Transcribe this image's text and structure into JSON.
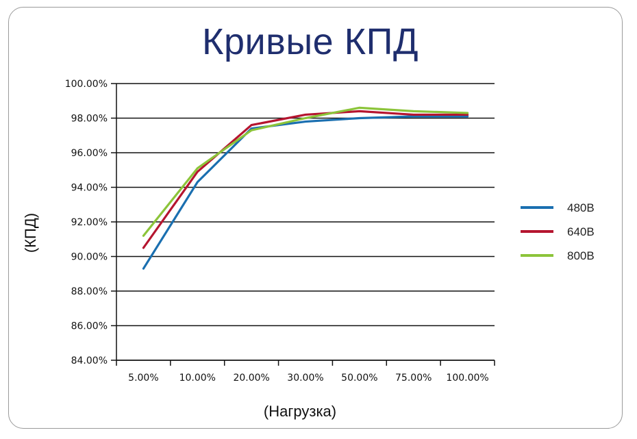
{
  "chart_data": {
    "type": "line",
    "title": "Кривые КПД",
    "xlabel": "(Нагрузка)",
    "ylabel": "(КПД)",
    "categories": [
      "5.00%",
      "10.00%",
      "20.00%",
      "30.00%",
      "50.00%",
      "75.00%",
      "100.00%"
    ],
    "y_ticks": [
      "84.00%",
      "86.00%",
      "88.00%",
      "90.00%",
      "92.00%",
      "94.00%",
      "96.00%",
      "98.00%",
      "100.00%"
    ],
    "ylim": [
      84,
      100
    ],
    "grid": true,
    "legend_position": "right",
    "series": [
      {
        "name": "480В",
        "color": "#1a6fb0",
        "values": [
          89.3,
          94.3,
          97.4,
          97.8,
          98.0,
          98.1,
          98.1
        ]
      },
      {
        "name": "640В",
        "color": "#b5152f",
        "values": [
          90.5,
          94.9,
          97.6,
          98.2,
          98.4,
          98.2,
          98.2
        ]
      },
      {
        "name": "800В",
        "color": "#8cc43a",
        "values": [
          91.2,
          95.1,
          97.3,
          98.0,
          98.6,
          98.4,
          98.3
        ]
      }
    ]
  }
}
